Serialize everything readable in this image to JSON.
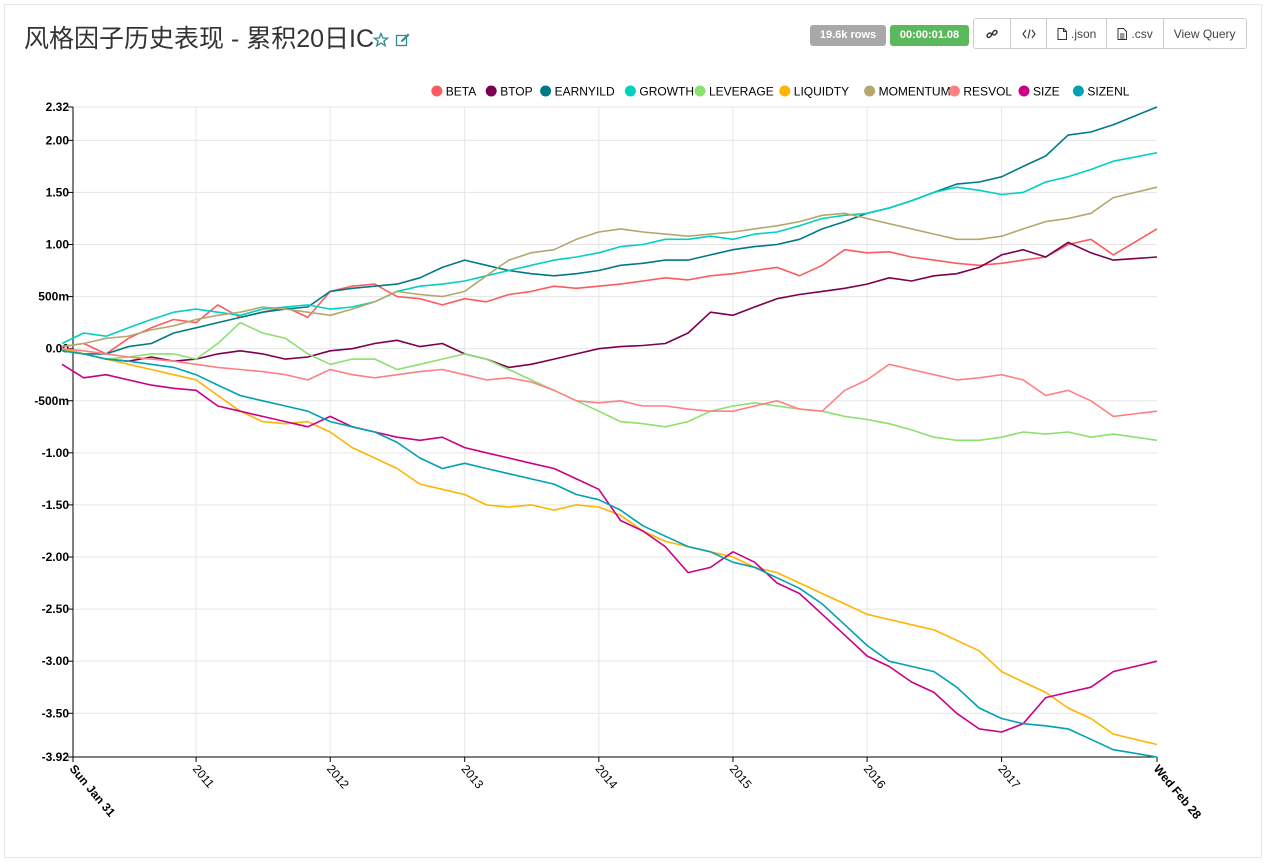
{
  "header": {
    "title": "风格因子历史表现 - 累积20日IC",
    "rows_badge": "19.6k rows",
    "time_badge": "00:00:01.08",
    "buttons": {
      "json": ".json",
      "csv": ".csv",
      "view_query": "View Query"
    }
  },
  "icons": [
    "star-icon",
    "edit-icon",
    "link-icon",
    "code-icon",
    "file-json-icon",
    "file-csv-icon"
  ],
  "chart_data": {
    "type": "line",
    "x_ticks": [
      "Sun Jan 31",
      "2011",
      "2012",
      "2013",
      "2014",
      "2015",
      "2016",
      "2017",
      "Wed Feb 28"
    ],
    "y_ticks": [
      "2.32",
      "2.00",
      "1.50",
      "1.00",
      "500m",
      "0.00",
      "-500m",
      "-1.00",
      "-1.50",
      "-2.00",
      "-2.50",
      "-3.00",
      "-3.50",
      "-3.92"
    ],
    "ylim": [
      -3.92,
      2.32
    ],
    "grid": true,
    "legend_position": "top-right",
    "x_dates": [
      "2010-01",
      "2010-03",
      "2010-05",
      "2010-07",
      "2010-09",
      "2010-11",
      "2011-01",
      "2011-03",
      "2011-05",
      "2011-07",
      "2011-09",
      "2011-11",
      "2012-01",
      "2012-03",
      "2012-05",
      "2012-07",
      "2012-09",
      "2012-11",
      "2013-01",
      "2013-03",
      "2013-05",
      "2013-07",
      "2013-09",
      "2013-11",
      "2014-01",
      "2014-03",
      "2014-05",
      "2014-07",
      "2014-09",
      "2014-11",
      "2015-01",
      "2015-03",
      "2015-05",
      "2015-07",
      "2015-09",
      "2015-11",
      "2016-01",
      "2016-03",
      "2016-05",
      "2016-07",
      "2016-09",
      "2016-11",
      "2017-01",
      "2017-03",
      "2017-05",
      "2017-07",
      "2017-09",
      "2017-11",
      "2018-02"
    ],
    "series": [
      {
        "name": "BETA",
        "color": "#ff5a5f",
        "values": [
          0.02,
          0.05,
          -0.05,
          0.1,
          0.2,
          0.28,
          0.25,
          0.42,
          0.3,
          0.35,
          0.4,
          0.3,
          0.55,
          0.6,
          0.62,
          0.5,
          0.48,
          0.42,
          0.48,
          0.45,
          0.52,
          0.55,
          0.6,
          0.58,
          0.6,
          0.62,
          0.65,
          0.68,
          0.66,
          0.7,
          0.72,
          0.75,
          0.78,
          0.7,
          0.8,
          0.95,
          0.92,
          0.93,
          0.88,
          0.85,
          0.82,
          0.8,
          0.82,
          0.85,
          0.88,
          1.0,
          1.05,
          0.9,
          1.15
        ]
      },
      {
        "name": "BTOP",
        "color": "#7b0051",
        "values": [
          0.0,
          -0.05,
          -0.1,
          -0.12,
          -0.08,
          -0.12,
          -0.1,
          -0.05,
          -0.02,
          -0.05,
          -0.1,
          -0.08,
          -0.02,
          0.0,
          0.05,
          0.08,
          0.02,
          0.05,
          -0.05,
          -0.1,
          -0.18,
          -0.15,
          -0.1,
          -0.05,
          0.0,
          0.02,
          0.03,
          0.05,
          0.15,
          0.35,
          0.32,
          0.4,
          0.48,
          0.52,
          0.55,
          0.58,
          0.62,
          0.68,
          0.65,
          0.7,
          0.72,
          0.78,
          0.9,
          0.95,
          0.88,
          1.02,
          0.92,
          0.85,
          0.88
        ]
      },
      {
        "name": "EARNYILD",
        "color": "#007a87",
        "values": [
          0.0,
          -0.05,
          -0.05,
          0.02,
          0.05,
          0.15,
          0.2,
          0.25,
          0.3,
          0.35,
          0.38,
          0.4,
          0.55,
          0.58,
          0.6,
          0.62,
          0.68,
          0.78,
          0.85,
          0.8,
          0.75,
          0.72,
          0.7,
          0.72,
          0.75,
          0.8,
          0.82,
          0.85,
          0.85,
          0.9,
          0.95,
          0.98,
          1.0,
          1.05,
          1.15,
          1.22,
          1.3,
          1.35,
          1.42,
          1.5,
          1.58,
          1.6,
          1.65,
          1.75,
          1.85,
          2.05,
          2.08,
          2.15,
          2.32
        ]
      },
      {
        "name": "GROWTH",
        "color": "#00d1c1",
        "values": [
          0.05,
          0.15,
          0.12,
          0.2,
          0.28,
          0.35,
          0.38,
          0.35,
          0.32,
          0.38,
          0.4,
          0.42,
          0.38,
          0.4,
          0.45,
          0.55,
          0.6,
          0.62,
          0.65,
          0.7,
          0.75,
          0.8,
          0.85,
          0.88,
          0.92,
          0.98,
          1.0,
          1.05,
          1.05,
          1.08,
          1.05,
          1.1,
          1.12,
          1.18,
          1.25,
          1.28,
          1.3,
          1.35,
          1.42,
          1.5,
          1.55,
          1.52,
          1.48,
          1.5,
          1.6,
          1.65,
          1.72,
          1.8,
          1.88
        ]
      },
      {
        "name": "LEVERAGE",
        "color": "#8ce071",
        "values": [
          0.0,
          -0.05,
          -0.1,
          -0.08,
          -0.05,
          -0.05,
          -0.1,
          0.05,
          0.25,
          0.15,
          0.1,
          -0.05,
          -0.15,
          -0.1,
          -0.1,
          -0.2,
          -0.15,
          -0.1,
          -0.05,
          -0.1,
          -0.2,
          -0.3,
          -0.4,
          -0.5,
          -0.6,
          -0.7,
          -0.72,
          -0.75,
          -0.7,
          -0.6,
          -0.55,
          -0.52,
          -0.55,
          -0.58,
          -0.6,
          -0.65,
          -0.68,
          -0.72,
          -0.78,
          -0.85,
          -0.88,
          -0.88,
          -0.85,
          -0.8,
          -0.82,
          -0.8,
          -0.85,
          -0.82,
          -0.88
        ]
      },
      {
        "name": "LIQUIDTY",
        "color": "#ffb400",
        "values": [
          0.0,
          -0.05,
          -0.1,
          -0.15,
          -0.2,
          -0.25,
          -0.3,
          -0.45,
          -0.6,
          -0.7,
          -0.72,
          -0.7,
          -0.8,
          -0.95,
          -1.05,
          -1.15,
          -1.3,
          -1.35,
          -1.4,
          -1.5,
          -1.52,
          -1.5,
          -1.55,
          -1.5,
          -1.52,
          -1.6,
          -1.75,
          -1.85,
          -1.9,
          -1.95,
          -2.0,
          -2.1,
          -2.15,
          -2.25,
          -2.35,
          -2.45,
          -2.55,
          -2.6,
          -2.65,
          -2.7,
          -2.8,
          -2.9,
          -3.1,
          -3.2,
          -3.3,
          -3.45,
          -3.55,
          -3.7,
          -3.8
        ]
      },
      {
        "name": "MOMENTUM",
        "color": "#b4a76c",
        "values": [
          0.02,
          0.05,
          0.1,
          0.12,
          0.18,
          0.22,
          0.28,
          0.32,
          0.35,
          0.4,
          0.38,
          0.35,
          0.32,
          0.38,
          0.45,
          0.55,
          0.52,
          0.5,
          0.55,
          0.7,
          0.85,
          0.92,
          0.95,
          1.05,
          1.12,
          1.15,
          1.12,
          1.1,
          1.08,
          1.1,
          1.12,
          1.15,
          1.18,
          1.22,
          1.28,
          1.3,
          1.25,
          1.2,
          1.15,
          1.1,
          1.05,
          1.05,
          1.08,
          1.15,
          1.22,
          1.25,
          1.3,
          1.45,
          1.55
        ]
      },
      {
        "name": "RESVOL",
        "color": "#ff8083",
        "values": [
          0.0,
          -0.02,
          -0.05,
          -0.08,
          -0.1,
          -0.12,
          -0.15,
          -0.18,
          -0.2,
          -0.22,
          -0.25,
          -0.3,
          -0.2,
          -0.25,
          -0.28,
          -0.25,
          -0.22,
          -0.2,
          -0.25,
          -0.3,
          -0.28,
          -0.32,
          -0.4,
          -0.5,
          -0.52,
          -0.5,
          -0.55,
          -0.55,
          -0.58,
          -0.6,
          -0.6,
          -0.55,
          -0.5,
          -0.58,
          -0.6,
          -0.4,
          -0.3,
          -0.15,
          -0.2,
          -0.25,
          -0.3,
          -0.28,
          -0.25,
          -0.3,
          -0.45,
          -0.4,
          -0.5,
          -0.65,
          -0.6
        ]
      },
      {
        "name": "SIZE",
        "color": "#cc0086",
        "values": [
          -0.15,
          -0.28,
          -0.25,
          -0.3,
          -0.35,
          -0.38,
          -0.4,
          -0.55,
          -0.6,
          -0.65,
          -0.7,
          -0.75,
          -0.65,
          -0.75,
          -0.8,
          -0.85,
          -0.88,
          -0.85,
          -0.95,
          -1.0,
          -1.05,
          -1.1,
          -1.15,
          -1.25,
          -1.35,
          -1.65,
          -1.75,
          -1.9,
          -2.15,
          -2.1,
          -1.95,
          -2.05,
          -2.25,
          -2.35,
          -2.55,
          -2.75,
          -2.95,
          -3.05,
          -3.2,
          -3.3,
          -3.5,
          -3.65,
          -3.68,
          -3.6,
          -3.35,
          -3.3,
          -3.25,
          -3.1,
          -3.0
        ]
      },
      {
        "name": "SIZENL",
        "color": "#00a1b3",
        "values": [
          -0.02,
          -0.05,
          -0.1,
          -0.12,
          -0.15,
          -0.18,
          -0.25,
          -0.35,
          -0.45,
          -0.5,
          -0.55,
          -0.6,
          -0.7,
          -0.75,
          -0.8,
          -0.9,
          -1.05,
          -1.15,
          -1.1,
          -1.15,
          -1.2,
          -1.25,
          -1.3,
          -1.4,
          -1.45,
          -1.55,
          -1.7,
          -1.8,
          -1.9,
          -1.95,
          -2.05,
          -2.1,
          -2.2,
          -2.3,
          -2.45,
          -2.65,
          -2.85,
          -3.0,
          -3.05,
          -3.1,
          -3.25,
          -3.45,
          -3.55,
          -3.6,
          -3.62,
          -3.65,
          -3.75,
          -3.85,
          -3.92
        ]
      }
    ]
  }
}
